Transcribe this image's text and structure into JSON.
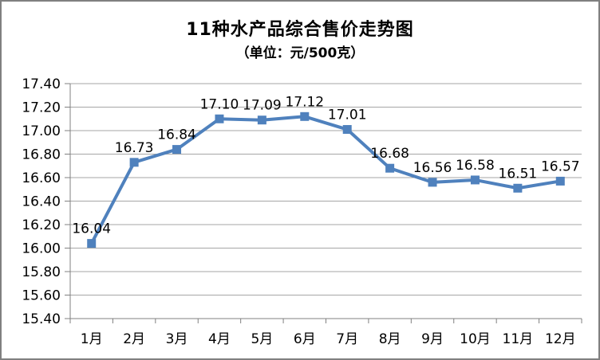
{
  "chart_data": {
    "type": "line",
    "title": "11种水产品综合售价走势图",
    "subtitle": "（单位：元/500克）",
    "categories": [
      "1月",
      "2月",
      "3月",
      "4月",
      "5月",
      "6月",
      "7月",
      "8月",
      "9月",
      "10月",
      "11月",
      "12月"
    ],
    "values": [
      16.04,
      16.73,
      16.84,
      17.1,
      17.09,
      17.12,
      17.01,
      16.68,
      16.56,
      16.58,
      16.51,
      16.57
    ],
    "data_labels": [
      "16.04",
      "16.73",
      "16.84",
      "17.10",
      "17.09",
      "17.12",
      "17.01",
      "16.68",
      "16.56",
      "16.58",
      "16.51",
      "16.57"
    ],
    "ylim": [
      15.4,
      17.4
    ],
    "ytick_step": 0.2,
    "ytick_labels": [
      "17.40",
      "17.20",
      "17.00",
      "16.80",
      "16.60",
      "16.40",
      "16.20",
      "16.00",
      "15.80",
      "15.60",
      "15.40"
    ],
    "grid": true,
    "legend": "none",
    "colors": {
      "line": "#4F81BD",
      "marker": "#4F81BD",
      "gridline": "#A6A6A6",
      "axis": "#808080",
      "text": "#000000",
      "frame_border": "#808080",
      "background": "#FFFFFF"
    }
  }
}
